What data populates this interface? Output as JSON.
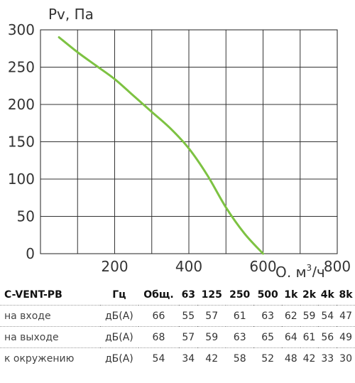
{
  "chart_data": {
    "type": "line",
    "ylabel": "Pv, Па",
    "xlabel_main": "Q, м",
    "xlabel_sup": "3",
    "xlabel_tail": "/ч",
    "xlim": [
      0,
      800
    ],
    "ylim": [
      0,
      300
    ],
    "x_ticks": [
      200,
      400,
      600,
      800
    ],
    "y_ticks": [
      0,
      50,
      100,
      150,
      200,
      250,
      300
    ],
    "grid": true,
    "curve_color": "#7dc242",
    "series": [
      {
        "x": [
          50,
          100,
          150,
          200,
          250,
          300,
          350,
          400,
          450,
          500,
          550,
          600
        ],
        "values": [
          290,
          270,
          252,
          234,
          212,
          190,
          168,
          141,
          105,
          62,
          27,
          0
        ]
      }
    ]
  },
  "table": {
    "model": "C-VENT-PB",
    "headers": [
      "Гц",
      "Общ.",
      "63",
      "125",
      "250",
      "500",
      "1k",
      "2k",
      "4k",
      "8k"
    ],
    "rows": [
      {
        "label": "на входе",
        "unit": "дБ(А)",
        "values": [
          "66",
          "55",
          "57",
          "61",
          "63",
          "62",
          "59",
          "54",
          "47"
        ]
      },
      {
        "label": "на выходе",
        "unit": "дБ(А)",
        "values": [
          "68",
          "57",
          "59",
          "63",
          "65",
          "64",
          "61",
          "56",
          "49"
        ]
      },
      {
        "label": "к окружению",
        "unit": "дБ(А)",
        "values": [
          "54",
          "34",
          "42",
          "58",
          "52",
          "48",
          "42",
          "33",
          "30"
        ]
      }
    ]
  }
}
